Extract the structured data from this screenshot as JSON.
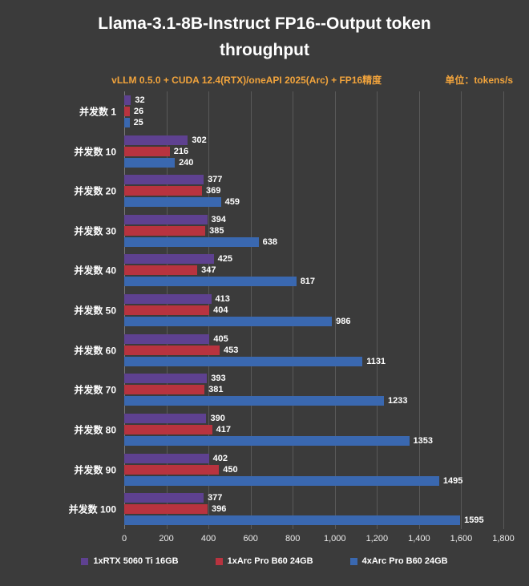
{
  "title": "Llama-3.1-8B-Instruct FP16--Output token throughput",
  "subtitle": "vLLM 0.5.0 + CUDA 12.4(RTX)/oneAPI 2025(Arc) + FP16精度",
  "unit_label": "单位：tokens/s",
  "colors": {
    "background": "#3b3b3b",
    "title": "#ffffff",
    "subtitle": "#f2a43c",
    "grid": "#595959",
    "series_purple": "#5e4190",
    "series_red": "#b8333f",
    "series_blue": "#3a68b0"
  },
  "chart_data": {
    "type": "bar",
    "orientation": "horizontal",
    "title": "Llama-3.1-8B-Instruct FP16--Output token throughput",
    "subtitle": "vLLM 0.5.0 + CUDA 12.4(RTX)/oneAPI 2025(Arc) + FP16精度",
    "unit": "tokens/s",
    "categories": [
      "并发数 1",
      "并发数 10",
      "并发数 20",
      "并发数 30",
      "并发数 40",
      "并发数 50",
      "并发数 60",
      "并发数 70",
      "并发数 80",
      "并发数 90",
      "并发数 100"
    ],
    "series": [
      {
        "name": "1xRTX 5060 Ti 16GB",
        "color": "#5e4190",
        "values": [
          32,
          302,
          377,
          394,
          425,
          413,
          405,
          393,
          390,
          402,
          377
        ]
      },
      {
        "name": "1xArc Pro B60 24GB",
        "color": "#b8333f",
        "values": [
          26,
          216,
          369,
          385,
          347,
          404,
          453,
          381,
          417,
          450,
          396
        ]
      },
      {
        "name": "4xArc Pro B60 24GB",
        "color": "#3a68b0",
        "values": [
          25,
          240,
          459,
          638,
          817,
          986,
          1131,
          1233,
          1353,
          1495,
          1595
        ]
      }
    ],
    "xlim": [
      0,
      1800
    ],
    "x_ticks": [
      "0",
      "200",
      "400",
      "600",
      "800",
      "1,000",
      "1,200",
      "1,400",
      "1,600",
      "1,800"
    ],
    "grid": true,
    "legend_position": "bottom"
  }
}
